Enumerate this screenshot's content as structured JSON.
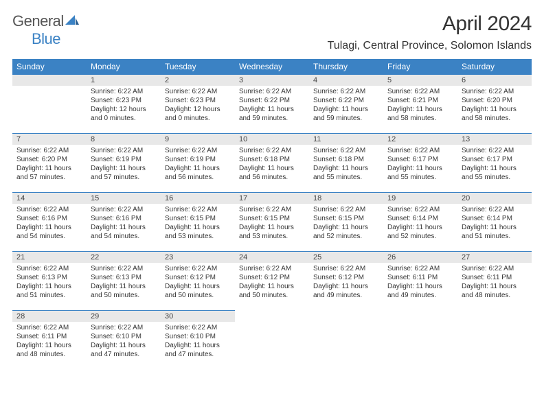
{
  "logo": {
    "part1": "General",
    "part2": "Blue",
    "accent_color": "#3b82c4",
    "text_color": "#555555"
  },
  "title": {
    "month": "April 2024",
    "location": "Tulagi, Central Province, Solomon Islands"
  },
  "colors": {
    "header_bg": "#3b82c4",
    "header_text": "#ffffff",
    "daynum_bg": "#e8e8e8",
    "border": "#3b82c4",
    "body_text": "#333333"
  },
  "day_headers": [
    "Sunday",
    "Monday",
    "Tuesday",
    "Wednesday",
    "Thursday",
    "Friday",
    "Saturday"
  ],
  "weeks": [
    [
      null,
      {
        "n": "1",
        "sr": "6:22 AM",
        "ss": "6:23 PM",
        "dl": "12 hours and 0 minutes."
      },
      {
        "n": "2",
        "sr": "6:22 AM",
        "ss": "6:23 PM",
        "dl": "12 hours and 0 minutes."
      },
      {
        "n": "3",
        "sr": "6:22 AM",
        "ss": "6:22 PM",
        "dl": "11 hours and 59 minutes."
      },
      {
        "n": "4",
        "sr": "6:22 AM",
        "ss": "6:22 PM",
        "dl": "11 hours and 59 minutes."
      },
      {
        "n": "5",
        "sr": "6:22 AM",
        "ss": "6:21 PM",
        "dl": "11 hours and 58 minutes."
      },
      {
        "n": "6",
        "sr": "6:22 AM",
        "ss": "6:20 PM",
        "dl": "11 hours and 58 minutes."
      }
    ],
    [
      {
        "n": "7",
        "sr": "6:22 AM",
        "ss": "6:20 PM",
        "dl": "11 hours and 57 minutes."
      },
      {
        "n": "8",
        "sr": "6:22 AM",
        "ss": "6:19 PM",
        "dl": "11 hours and 57 minutes."
      },
      {
        "n": "9",
        "sr": "6:22 AM",
        "ss": "6:19 PM",
        "dl": "11 hours and 56 minutes."
      },
      {
        "n": "10",
        "sr": "6:22 AM",
        "ss": "6:18 PM",
        "dl": "11 hours and 56 minutes."
      },
      {
        "n": "11",
        "sr": "6:22 AM",
        "ss": "6:18 PM",
        "dl": "11 hours and 55 minutes."
      },
      {
        "n": "12",
        "sr": "6:22 AM",
        "ss": "6:17 PM",
        "dl": "11 hours and 55 minutes."
      },
      {
        "n": "13",
        "sr": "6:22 AM",
        "ss": "6:17 PM",
        "dl": "11 hours and 55 minutes."
      }
    ],
    [
      {
        "n": "14",
        "sr": "6:22 AM",
        "ss": "6:16 PM",
        "dl": "11 hours and 54 minutes."
      },
      {
        "n": "15",
        "sr": "6:22 AM",
        "ss": "6:16 PM",
        "dl": "11 hours and 54 minutes."
      },
      {
        "n": "16",
        "sr": "6:22 AM",
        "ss": "6:15 PM",
        "dl": "11 hours and 53 minutes."
      },
      {
        "n": "17",
        "sr": "6:22 AM",
        "ss": "6:15 PM",
        "dl": "11 hours and 53 minutes."
      },
      {
        "n": "18",
        "sr": "6:22 AM",
        "ss": "6:15 PM",
        "dl": "11 hours and 52 minutes."
      },
      {
        "n": "19",
        "sr": "6:22 AM",
        "ss": "6:14 PM",
        "dl": "11 hours and 52 minutes."
      },
      {
        "n": "20",
        "sr": "6:22 AM",
        "ss": "6:14 PM",
        "dl": "11 hours and 51 minutes."
      }
    ],
    [
      {
        "n": "21",
        "sr": "6:22 AM",
        "ss": "6:13 PM",
        "dl": "11 hours and 51 minutes."
      },
      {
        "n": "22",
        "sr": "6:22 AM",
        "ss": "6:13 PM",
        "dl": "11 hours and 50 minutes."
      },
      {
        "n": "23",
        "sr": "6:22 AM",
        "ss": "6:12 PM",
        "dl": "11 hours and 50 minutes."
      },
      {
        "n": "24",
        "sr": "6:22 AM",
        "ss": "6:12 PM",
        "dl": "11 hours and 50 minutes."
      },
      {
        "n": "25",
        "sr": "6:22 AM",
        "ss": "6:12 PM",
        "dl": "11 hours and 49 minutes."
      },
      {
        "n": "26",
        "sr": "6:22 AM",
        "ss": "6:11 PM",
        "dl": "11 hours and 49 minutes."
      },
      {
        "n": "27",
        "sr": "6:22 AM",
        "ss": "6:11 PM",
        "dl": "11 hours and 48 minutes."
      }
    ],
    [
      {
        "n": "28",
        "sr": "6:22 AM",
        "ss": "6:11 PM",
        "dl": "11 hours and 48 minutes."
      },
      {
        "n": "29",
        "sr": "6:22 AM",
        "ss": "6:10 PM",
        "dl": "11 hours and 47 minutes."
      },
      {
        "n": "30",
        "sr": "6:22 AM",
        "ss": "6:10 PM",
        "dl": "11 hours and 47 minutes."
      },
      null,
      null,
      null,
      null
    ]
  ],
  "labels": {
    "sunrise": "Sunrise:",
    "sunset": "Sunset:",
    "daylight": "Daylight:"
  }
}
